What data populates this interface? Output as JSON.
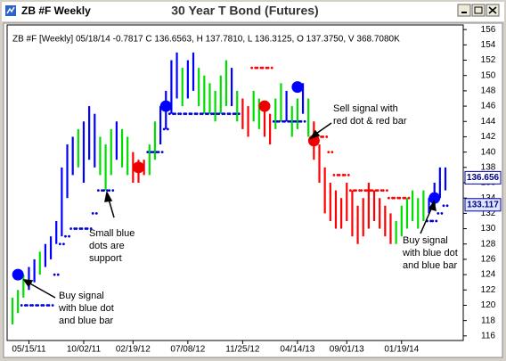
{
  "window": {
    "title": "ZB #F Weekly"
  },
  "chart_data": {
    "type": "ohlc",
    "title": "30 Year T Bond (Futures)",
    "info": "ZB #F [Weekly] 05/18/14  -0.7817 C 136.6563, H 137.7810, L 136.3125, O 137.3750, V 368.7080K",
    "categories": [
      null,
      null,
      null,
      "05/15/11",
      null,
      null,
      null,
      null,
      null,
      null,
      null,
      null,
      null,
      "10/02/11",
      null,
      null,
      null,
      null,
      null,
      null,
      null,
      null,
      "02/19/12",
      null,
      null,
      null,
      null,
      null,
      null,
      null,
      null,
      null,
      "07/08/12",
      null,
      null,
      null,
      null,
      null,
      null,
      null,
      null,
      null,
      "11/25/12",
      null,
      null,
      null,
      null,
      null,
      null,
      null,
      null,
      null,
      "04/14/13",
      null,
      null,
      null,
      null,
      null,
      null,
      null,
      null,
      "09/01/13",
      null,
      null,
      null,
      null,
      null,
      null,
      null,
      null,
      null,
      "01/19/14",
      null,
      null,
      null,
      null,
      null,
      null,
      null,
      null
    ],
    "high": [
      121,
      122,
      124,
      125,
      126,
      127,
      128,
      129,
      131,
      138,
      141,
      142,
      143,
      144,
      146,
      145,
      142,
      141,
      143,
      144,
      143,
      142,
      140,
      139,
      139,
      141,
      144,
      146,
      148,
      152,
      153,
      151,
      152,
      153,
      151,
      150,
      149,
      148,
      150,
      152,
      151,
      148,
      147,
      146,
      148,
      147,
      146,
      145,
      147,
      149,
      148,
      146,
      147,
      149,
      147,
      144,
      141,
      138,
      136,
      135,
      134,
      136,
      135,
      133,
      134,
      136,
      135,
      134,
      133,
      132,
      131,
      133,
      134,
      135,
      134,
      135,
      134,
      136,
      138,
      138
    ],
    "low": [
      117.5,
      119,
      121,
      122,
      123,
      124,
      125,
      126,
      128,
      129,
      134,
      137,
      138,
      136,
      139,
      138,
      137,
      135,
      137,
      139,
      138,
      137,
      136,
      136,
      137,
      137,
      139,
      141,
      143,
      145,
      147,
      146,
      147,
      148,
      146,
      145,
      145,
      144,
      145,
      146,
      146,
      144,
      143,
      142,
      144,
      143,
      142,
      141,
      143,
      144,
      144,
      142,
      143,
      145,
      142,
      139,
      136,
      132,
      131,
      130,
      130,
      131,
      129,
      128,
      129,
      130,
      131,
      130,
      129,
      128,
      128,
      129,
      130,
      131,
      130,
      131,
      132,
      133,
      134,
      135
    ],
    "trend": [
      "g",
      "g",
      "g",
      "b",
      "b",
      "g",
      "b",
      "b",
      "b",
      "b",
      "b",
      "b",
      "g",
      "b",
      "b",
      "b",
      "g",
      "g",
      "g",
      "b",
      "g",
      "g",
      "r",
      "r",
      "r",
      "g",
      "g",
      "b",
      "b",
      "b",
      "b",
      "g",
      "b",
      "b",
      "g",
      "g",
      "g",
      "g",
      "g",
      "g",
      "b",
      "g",
      "r",
      "r",
      "g",
      "g",
      "r",
      "r",
      "g",
      "g",
      "b",
      "g",
      "g",
      "b",
      "g",
      "r",
      "r",
      "r",
      "r",
      "r",
      "r",
      "r",
      "r",
      "r",
      "r",
      "r",
      "r",
      "r",
      "r",
      "r",
      "g",
      "g",
      "g",
      "g",
      "g",
      "g",
      "b",
      "b",
      "b",
      "b"
    ],
    "trend_colors": {
      "b": "#0000ff",
      "g": "#00dd00",
      "r": "#ff0000"
    },
    "support": [
      null,
      null,
      120,
      120,
      120,
      120,
      120,
      120,
      124,
      128,
      129,
      130,
      130,
      130,
      130,
      132,
      135,
      135,
      135,
      null,
      null,
      null,
      null,
      null,
      null,
      140,
      140,
      140,
      143,
      145,
      145,
      145,
      145,
      145,
      145,
      145,
      145,
      145,
      145,
      145,
      145,
      145,
      null,
      null,
      null,
      null,
      null,
      null,
      144,
      144,
      144,
      144,
      144,
      144,
      null,
      null,
      null,
      null,
      null,
      null,
      null,
      null,
      null,
      null,
      null,
      null,
      null,
      null,
      null,
      null,
      null,
      null,
      null,
      null,
      null,
      null,
      131,
      131,
      132,
      133
    ],
    "resistance": [
      null,
      null,
      null,
      null,
      null,
      null,
      null,
      null,
      null,
      null,
      null,
      null,
      null,
      null,
      null,
      null,
      null,
      null,
      null,
      null,
      null,
      null,
      null,
      null,
      null,
      null,
      null,
      null,
      null,
      null,
      null,
      null,
      null,
      null,
      null,
      null,
      null,
      null,
      null,
      null,
      null,
      null,
      null,
      null,
      151,
      151,
      151,
      151,
      null,
      null,
      null,
      null,
      null,
      null,
      null,
      null,
      142,
      142,
      140,
      137,
      137,
      137,
      135,
      135,
      135,
      135,
      135,
      135,
      135,
      134,
      134,
      134,
      134,
      null,
      null,
      null,
      null,
      null,
      null,
      null
    ],
    "buy_signal": [
      null,
      124,
      null,
      null,
      null,
      null,
      null,
      null,
      null,
      null,
      null,
      null,
      null,
      null,
      null,
      null,
      null,
      null,
      null,
      null,
      null,
      null,
      null,
      null,
      null,
      null,
      null,
      null,
      146,
      null,
      null,
      null,
      null,
      null,
      null,
      null,
      null,
      null,
      null,
      null,
      null,
      null,
      null,
      null,
      null,
      null,
      null,
      null,
      null,
      null,
      null,
      null,
      148.5,
      null,
      null,
      null,
      null,
      null,
      null,
      null,
      null,
      null,
      null,
      null,
      null,
      null,
      null,
      null,
      null,
      null,
      null,
      null,
      null,
      null,
      null,
      null,
      null,
      134,
      null,
      null
    ],
    "sell_signal": [
      null,
      null,
      null,
      null,
      null,
      null,
      null,
      null,
      null,
      null,
      null,
      null,
      null,
      null,
      null,
      null,
      null,
      null,
      null,
      null,
      null,
      null,
      null,
      138,
      null,
      null,
      null,
      null,
      null,
      null,
      null,
      null,
      null,
      null,
      null,
      null,
      null,
      null,
      null,
      null,
      null,
      null,
      null,
      null,
      null,
      null,
      146,
      null,
      null,
      null,
      null,
      null,
      null,
      null,
      null,
      141.5,
      null,
      null,
      null,
      null,
      null,
      null,
      null,
      null,
      null,
      null,
      null,
      null,
      null,
      null,
      null,
      null,
      null,
      null,
      null,
      null,
      null,
      null,
      null,
      null
    ],
    "support_color": "#0000dd",
    "resistance_color": "#ff0000",
    "ylim": [
      115.4,
      156.6
    ],
    "yticks": [
      116,
      118,
      120,
      122,
      124,
      126,
      128,
      130,
      132,
      134,
      136,
      138,
      140,
      142,
      144,
      146,
      148,
      150,
      152,
      154,
      156
    ],
    "price_labels": [
      136.656,
      133.117
    ],
    "annotations": [
      {
        "lines": [
          "Buy signal",
          "with blue dot",
          "and blue bar"
        ]
      },
      {
        "lines": [
          "Small blue",
          "dots are",
          "support"
        ]
      },
      {
        "lines": [
          "Sell signal with",
          "red dot & red bar"
        ]
      },
      {
        "lines": [
          "Buy signal",
          "with blue dot",
          "and blue bar"
        ]
      }
    ]
  }
}
